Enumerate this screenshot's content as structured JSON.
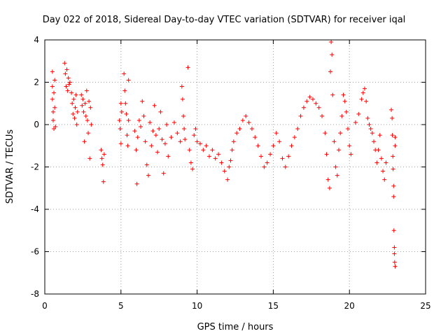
{
  "chart_data": {
    "type": "scatter",
    "title": "Day 022 of 2018, Sidereal Day-to-day VTEC variation (SDTVAR) for receiver iqal",
    "xlabel": "GPS time / hours",
    "ylabel": "SDTVAR / TECUs",
    "xlim": [
      0,
      25
    ],
    "ylim": [
      -8,
      4
    ],
    "xticks": [
      "0",
      "5",
      "10",
      "15",
      "20",
      "25"
    ],
    "yticks": [
      "-8",
      "-6",
      "-4",
      "-2",
      "0",
      "2",
      "4"
    ],
    "grid": true,
    "marker": "+",
    "color": "#ff0000",
    "series": [
      {
        "name": "SDTVAR",
        "points": [
          [
            0.5,
            2.5
          ],
          [
            0.5,
            1.8
          ],
          [
            0.5,
            1.2
          ],
          [
            0.55,
            0.6
          ],
          [
            0.55,
            0.2
          ],
          [
            0.6,
            -0.2
          ],
          [
            0.6,
            1.5
          ],
          [
            0.65,
            0.8
          ],
          [
            0.65,
            2.1
          ],
          [
            0.7,
            -0.1
          ],
          [
            1.3,
            2.9
          ],
          [
            1.35,
            2.4
          ],
          [
            1.4,
            1.8
          ],
          [
            1.45,
            2.6
          ],
          [
            1.5,
            1.6
          ],
          [
            1.55,
            2.2
          ],
          [
            1.6,
            1.9
          ],
          [
            1.65,
            2.0
          ],
          [
            1.75,
            1.5
          ],
          [
            1.8,
            1.0
          ],
          [
            1.85,
            0.5
          ],
          [
            1.9,
            1.2
          ],
          [
            1.95,
            0.3
          ],
          [
            2.0,
            0.8
          ],
          [
            2.05,
            1.4
          ],
          [
            2.1,
            0.0
          ],
          [
            2.15,
            0.6
          ],
          [
            2.4,
            1.4
          ],
          [
            2.45,
            0.9
          ],
          [
            2.5,
            1.2
          ],
          [
            2.55,
            0.6
          ],
          [
            2.6,
            -0.8
          ],
          [
            2.65,
            1.0
          ],
          [
            2.7,
            0.4
          ],
          [
            2.75,
            1.6
          ],
          [
            2.8,
            0.2
          ],
          [
            2.85,
            -0.4
          ],
          [
            2.9,
            1.1
          ],
          [
            2.95,
            -1.6
          ],
          [
            3.0,
            0.8
          ],
          [
            3.05,
            0.0
          ],
          [
            3.7,
            -1.2
          ],
          [
            3.75,
            -1.6
          ],
          [
            3.8,
            -1.9
          ],
          [
            3.85,
            -2.7
          ],
          [
            3.9,
            -1.4
          ],
          [
            4.9,
            0.2
          ],
          [
            4.95,
            -0.2
          ],
          [
            5.0,
            1.0
          ],
          [
            5.0,
            -0.9
          ],
          [
            5.05,
            0.6
          ],
          [
            5.2,
            2.4
          ],
          [
            5.25,
            1.6
          ],
          [
            5.3,
            1.0
          ],
          [
            5.35,
            0.5
          ],
          [
            5.4,
            -0.5
          ],
          [
            5.45,
            -1.0
          ],
          [
            5.5,
            2.1
          ],
          [
            5.5,
            0.2
          ],
          [
            5.9,
            -0.3
          ],
          [
            6.0,
            -1.2
          ],
          [
            6.05,
            -2.8
          ],
          [
            6.1,
            -0.6
          ],
          [
            6.2,
            0.2
          ],
          [
            6.3,
            -0.1
          ],
          [
            6.4,
            1.1
          ],
          [
            6.5,
            0.4
          ],
          [
            6.6,
            -0.8
          ],
          [
            6.7,
            -1.9
          ],
          [
            6.8,
            -2.4
          ],
          [
            6.9,
            0.1
          ],
          [
            7.0,
            -1.0
          ],
          [
            7.1,
            -0.3
          ],
          [
            7.2,
            0.9
          ],
          [
            7.3,
            -0.5
          ],
          [
            7.4,
            -1.3
          ],
          [
            7.5,
            -0.2
          ],
          [
            7.6,
            0.6
          ],
          [
            7.7,
            -0.7
          ],
          [
            7.8,
            -2.3
          ],
          [
            7.9,
            -0.9
          ],
          [
            8.0,
            0.0
          ],
          [
            8.1,
            -1.5
          ],
          [
            8.3,
            -0.6
          ],
          [
            8.5,
            0.1
          ],
          [
            8.7,
            -0.4
          ],
          [
            8.9,
            -0.8
          ],
          [
            9.0,
            1.8
          ],
          [
            9.05,
            1.2
          ],
          [
            9.1,
            0.4
          ],
          [
            9.15,
            -0.2
          ],
          [
            9.2,
            -0.7
          ],
          [
            9.4,
            2.7
          ],
          [
            9.5,
            -1.2
          ],
          [
            9.6,
            -1.8
          ],
          [
            9.7,
            -2.1
          ],
          [
            9.8,
            -0.5
          ],
          [
            9.9,
            -0.2
          ],
          [
            10.0,
            -0.8
          ],
          [
            10.2,
            -0.9
          ],
          [
            10.4,
            -1.2
          ],
          [
            10.6,
            -1.0
          ],
          [
            10.8,
            -1.5
          ],
          [
            11.0,
            -1.2
          ],
          [
            11.2,
            -1.6
          ],
          [
            11.4,
            -1.4
          ],
          [
            11.6,
            -1.8
          ],
          [
            11.8,
            -2.2
          ],
          [
            12.0,
            -2.6
          ],
          [
            12.1,
            -2.0
          ],
          [
            12.2,
            -1.7
          ],
          [
            12.3,
            -1.2
          ],
          [
            12.4,
            -0.8
          ],
          [
            12.6,
            -0.4
          ],
          [
            12.8,
            -0.2
          ],
          [
            13.0,
            0.2
          ],
          [
            13.2,
            0.4
          ],
          [
            13.4,
            0.1
          ],
          [
            13.6,
            -0.2
          ],
          [
            13.8,
            -0.6
          ],
          [
            14.0,
            -1.0
          ],
          [
            14.2,
            -1.5
          ],
          [
            14.4,
            -2.0
          ],
          [
            14.6,
            -1.8
          ],
          [
            14.8,
            -1.4
          ],
          [
            15.0,
            -1.0
          ],
          [
            15.2,
            -0.4
          ],
          [
            15.4,
            -0.8
          ],
          [
            15.6,
            -1.6
          ],
          [
            15.8,
            -2.0
          ],
          [
            16.0,
            -1.5
          ],
          [
            16.2,
            -1.0
          ],
          [
            16.4,
            -0.6
          ],
          [
            16.6,
            -0.2
          ],
          [
            16.8,
            0.4
          ],
          [
            17.0,
            0.8
          ],
          [
            17.2,
            1.1
          ],
          [
            17.4,
            1.3
          ],
          [
            17.6,
            1.2
          ],
          [
            17.8,
            1.0
          ],
          [
            18.0,
            0.8
          ],
          [
            18.2,
            0.4
          ],
          [
            18.4,
            -0.4
          ],
          [
            18.5,
            -1.4
          ],
          [
            18.6,
            -2.6
          ],
          [
            18.7,
            -3.0
          ],
          [
            18.75,
            2.5
          ],
          [
            18.8,
            3.9
          ],
          [
            18.85,
            3.3
          ],
          [
            18.9,
            1.4
          ],
          [
            19.0,
            -0.8
          ],
          [
            19.1,
            -2.0
          ],
          [
            19.2,
            -2.4
          ],
          [
            19.3,
            -1.2
          ],
          [
            19.4,
            -0.4
          ],
          [
            19.5,
            0.4
          ],
          [
            19.6,
            1.4
          ],
          [
            19.7,
            1.1
          ],
          [
            19.8,
            0.6
          ],
          [
            19.9,
            -0.2
          ],
          [
            20.0,
            -1.0
          ],
          [
            20.1,
            -1.4
          ],
          [
            20.4,
            0.1
          ],
          [
            20.6,
            0.5
          ],
          [
            20.8,
            1.2
          ],
          [
            20.9,
            1.5
          ],
          [
            21.0,
            1.7
          ],
          [
            21.1,
            1.1
          ],
          [
            21.2,
            0.3
          ],
          [
            21.3,
            0.0
          ],
          [
            21.4,
            -0.2
          ],
          [
            21.5,
            -0.4
          ],
          [
            21.6,
            -0.8
          ],
          [
            21.7,
            -1.2
          ],
          [
            21.8,
            -1.8
          ],
          [
            21.9,
            -1.2
          ],
          [
            22.0,
            -0.5
          ],
          [
            22.1,
            -1.6
          ],
          [
            22.2,
            -2.2
          ],
          [
            22.3,
            -2.6
          ],
          [
            22.4,
            -1.8
          ],
          [
            22.75,
            0.7
          ],
          [
            22.8,
            0.3
          ],
          [
            22.82,
            -0.5
          ],
          [
            22.85,
            -1.5
          ],
          [
            22.87,
            -2.1
          ],
          [
            22.9,
            -2.9
          ],
          [
            22.9,
            -3.4
          ],
          [
            22.92,
            -5.0
          ],
          [
            22.95,
            -5.8
          ],
          [
            22.95,
            -6.1
          ],
          [
            22.97,
            -6.5
          ],
          [
            23.0,
            -6.7
          ],
          [
            23.0,
            -1.0
          ],
          [
            23.0,
            -0.6
          ]
        ]
      }
    ]
  }
}
